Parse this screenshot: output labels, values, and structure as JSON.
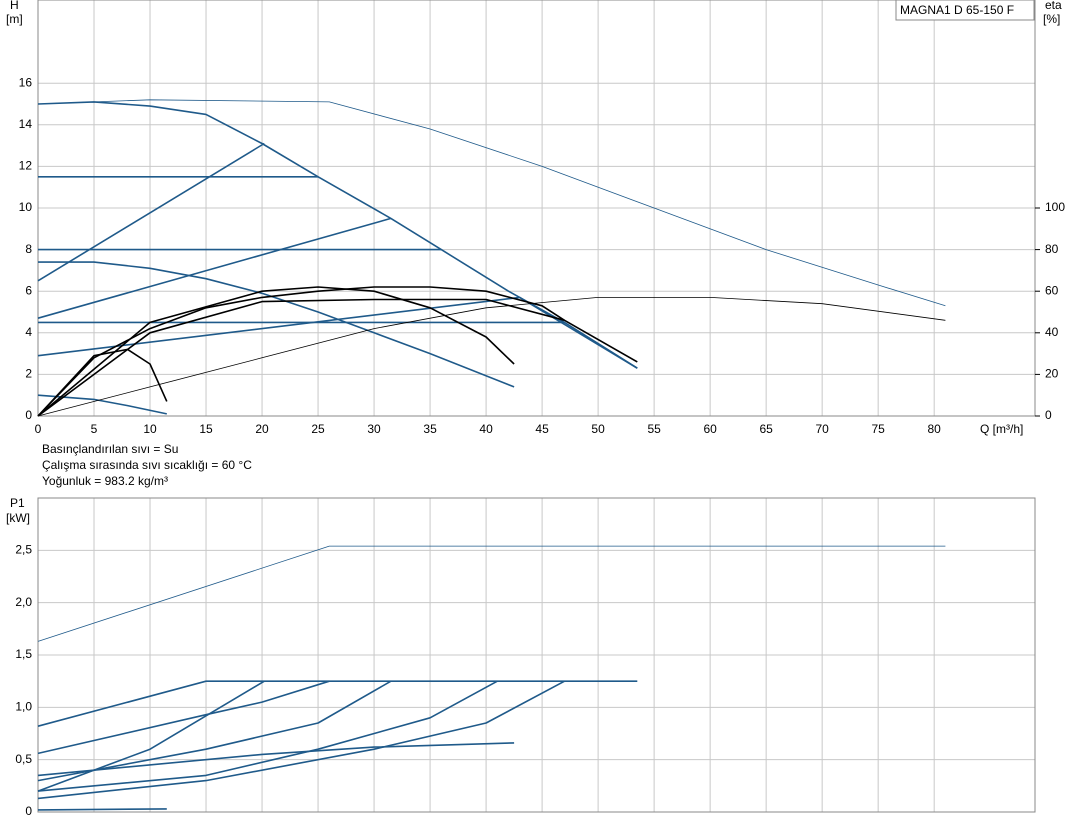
{
  "chart_data": [
    {
      "type": "line",
      "title": "MAGNA1 D 65-150 F",
      "ylabel": "H",
      "yunit": "[m]",
      "y2label": "eta",
      "y2unit": "[%]",
      "xlabel": "Q [m³/h]",
      "xlim": [
        0,
        89
      ],
      "xticks": [
        0,
        5,
        10,
        15,
        20,
        25,
        30,
        35,
        40,
        45,
        50,
        55,
        60,
        65,
        70,
        75,
        80
      ],
      "ylim": [
        0,
        20
      ],
      "yticks": [
        0,
        2,
        4,
        6,
        8,
        10,
        12,
        14,
        16
      ],
      "y2lim": [
        0,
        200
      ],
      "y2ticks": [
        0,
        20,
        40,
        60,
        80,
        100
      ],
      "grid": true,
      "notes": [
        "Basınçlandırılan sıvı = Su",
        "Çalışma sırasında sıvı sıcaklığı = 60 °C",
        "Yoğunluk = 983.2 kg/m³"
      ],
      "series": [
        {
          "color": "#1f5a8a",
          "x": [
            0,
            5,
            10,
            15,
            20,
            25,
            31.5,
            36,
            42,
            47,
            53.5
          ],
          "values": [
            15,
            15.1,
            14.9,
            14.5,
            13.1,
            11.5,
            9.5,
            8,
            6,
            4.5,
            2.3
          ]
        },
        {
          "color": "#1f5a8a",
          "x": [
            0,
            25
          ],
          "values": [
            11.5,
            11.5
          ]
        },
        {
          "color": "#1f5a8a",
          "x": [
            0,
            36
          ],
          "values": [
            8,
            8
          ]
        },
        {
          "color": "#1f5a8a",
          "x": [
            0,
            47
          ],
          "values": [
            4.5,
            4.5
          ]
        },
        {
          "color": "#1f5a8a",
          "x": [
            0,
            20.2
          ],
          "values": [
            6.5,
            13.1
          ]
        },
        {
          "color": "#1f5a8a",
          "x": [
            0,
            31.5
          ],
          "values": [
            4.7,
            9.5
          ]
        },
        {
          "color": "#1f5a8a",
          "x": [
            0,
            43,
            53.5
          ],
          "values": [
            2.9,
            5.7,
            2.3
          ]
        },
        {
          "color": "#1f5a8a",
          "x": [
            0,
            5,
            10,
            15,
            20,
            25,
            30,
            35,
            42.5
          ],
          "values": [
            7.4,
            7.4,
            7.1,
            6.6,
            5.9,
            5,
            4,
            3,
            1.4
          ]
        },
        {
          "color": "#1f5a8a",
          "x": [
            0,
            5,
            8,
            11.5
          ],
          "values": [
            1,
            0.8,
            0.5,
            0.1
          ]
        },
        {
          "color": "#1f5a8a",
          "style": "thin",
          "x": [
            0,
            10,
            26,
            35,
            45,
            55,
            65,
            75,
            81
          ],
          "values": [
            15,
            15.2,
            15.1,
            13.8,
            12,
            10,
            8,
            6.3,
            5.3
          ]
        },
        {
          "color": "#000000",
          "style": "thin",
          "axis": "y2",
          "x": [
            0,
            10,
            20,
            30,
            40,
            50,
            60,
            70,
            81
          ],
          "values": [
            0,
            14,
            28,
            42,
            52,
            57,
            57,
            54,
            46
          ]
        },
        {
          "color": "#000000",
          "axis": "y2",
          "x": [
            0,
            5,
            10,
            15,
            20,
            25,
            30,
            35,
            40,
            45,
            47,
            53.5
          ],
          "values": [
            0,
            28,
            42,
            52,
            57,
            60,
            62,
            62,
            60,
            53,
            46,
            26
          ]
        },
        {
          "color": "#000000",
          "axis": "y2",
          "x": [
            0,
            5,
            8,
            10,
            11.5
          ],
          "values": [
            0,
            29,
            32,
            25,
            7
          ]
        },
        {
          "color": "#000000",
          "axis": "y2",
          "x": [
            0,
            10,
            20,
            25,
            30,
            35,
            40,
            42.5
          ],
          "values": [
            0,
            45,
            60,
            62,
            60,
            52,
            38,
            25
          ]
        },
        {
          "color": "#000000",
          "axis": "y2",
          "x": [
            0,
            10,
            20,
            30,
            40,
            47
          ],
          "values": [
            0,
            40,
            55,
            56,
            56,
            46
          ]
        }
      ]
    },
    {
      "type": "line",
      "ylabel": "P1",
      "yunit": "[kW]",
      "xlim": [
        0,
        89
      ],
      "ylim": [
        0,
        3
      ],
      "grid": true,
      "yticks": [
        0,
        {
          "value": 0.5,
          "label": "0,5"
        },
        {
          "value": 1,
          "label": "1,0"
        },
        {
          "value": 1.5,
          "label": "1,5"
        },
        {
          "value": 2,
          "label": "2,0"
        },
        {
          "value": 2.5,
          "label": "2,5"
        }
      ],
      "series": [
        {
          "color": "#1f5a8a",
          "style": "thin",
          "x": [
            0,
            26,
            81
          ],
          "values": [
            1.63,
            2.54,
            2.54
          ]
        },
        {
          "color": "#1f5a8a",
          "x": [
            0,
            15,
            53.5
          ],
          "values": [
            0.82,
            1.25,
            1.25
          ]
        },
        {
          "color": "#1f5a8a",
          "x": [
            0,
            15,
            20,
            26
          ],
          "values": [
            0.56,
            0.93,
            1.05,
            1.25
          ]
        },
        {
          "color": "#1f5a8a",
          "x": [
            0,
            10,
            20.2
          ],
          "values": [
            0.2,
            0.6,
            1.25
          ]
        },
        {
          "color": "#1f5a8a",
          "x": [
            0,
            15,
            25,
            31.5
          ],
          "values": [
            0.3,
            0.6,
            0.85,
            1.25
          ]
        },
        {
          "color": "#1f5a8a",
          "x": [
            0,
            15,
            25,
            35,
            41
          ],
          "values": [
            0.2,
            0.35,
            0.6,
            0.9,
            1.25
          ]
        },
        {
          "color": "#1f5a8a",
          "x": [
            0,
            15,
            30,
            40,
            47
          ],
          "values": [
            0.13,
            0.3,
            0.6,
            0.85,
            1.25
          ]
        },
        {
          "color": "#1f5a8a",
          "x": [
            0,
            20,
            30,
            42.5
          ],
          "values": [
            0.35,
            0.55,
            0.62,
            0.66
          ]
        },
        {
          "color": "#1f5a8a",
          "x": [
            0,
            11.5
          ],
          "values": [
            0.02,
            0.03
          ]
        }
      ]
    }
  ]
}
